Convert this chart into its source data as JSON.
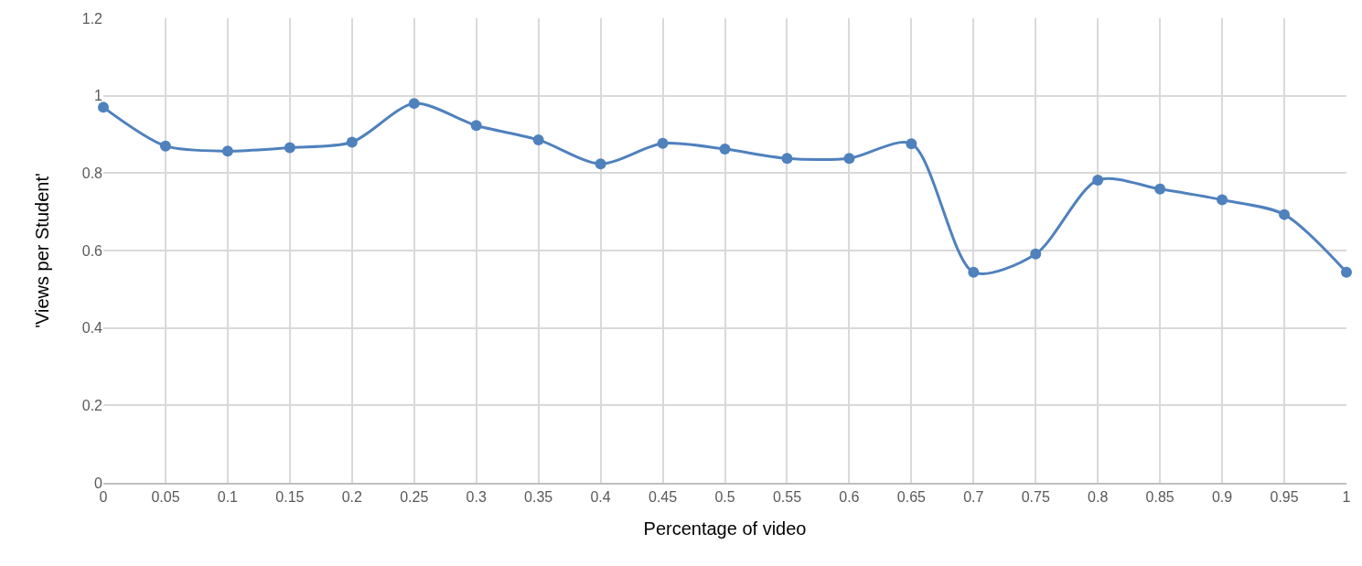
{
  "chart_data": {
    "type": "line",
    "xlabel": "Percentage of video",
    "ylabel": "'Views per Student'",
    "x": [
      0,
      0.05,
      0.1,
      0.15,
      0.2,
      0.25,
      0.3,
      0.35,
      0.4,
      0.45,
      0.5,
      0.55,
      0.6,
      0.65,
      0.7,
      0.75,
      0.8,
      0.85,
      0.9,
      0.95,
      1
    ],
    "series": [
      {
        "color": "#4f81bd",
        "values": [
          0.97,
          0.87,
          0.857,
          0.866,
          0.88,
          0.98,
          0.923,
          0.886,
          0.824,
          0.877,
          0.862,
          0.838,
          0.838,
          0.876,
          0.544,
          0.591,
          0.782,
          0.759,
          0.731,
          0.693,
          0.544
        ]
      }
    ],
    "xlim": [
      0,
      1
    ],
    "xticks": [
      0,
      0.05,
      0.1,
      0.15,
      0.2,
      0.25,
      0.3,
      0.35,
      0.4,
      0.45,
      0.5,
      0.55,
      0.6,
      0.65,
      0.7,
      0.75,
      0.8,
      0.85,
      0.9,
      0.95,
      1
    ],
    "ylim": [
      0,
      1.2
    ],
    "yticks": [
      0,
      0.2,
      0.4,
      0.6,
      0.8,
      1,
      1.2
    ],
    "grid": true,
    "marker": "circle",
    "line_style": "solid"
  }
}
